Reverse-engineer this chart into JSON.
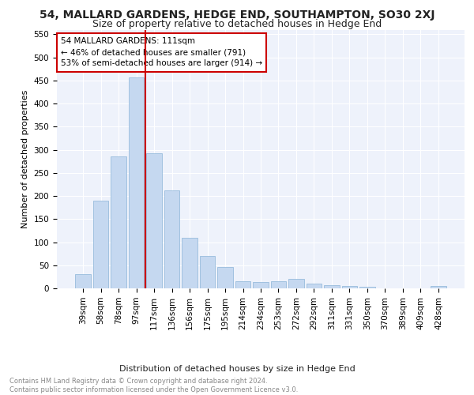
{
  "title": "54, MALLARD GARDENS, HEDGE END, SOUTHAMPTON, SO30 2XJ",
  "subtitle": "Size of property relative to detached houses in Hedge End",
  "xlabel": "Distribution of detached houses by size in Hedge End",
  "ylabel": "Number of detached properties",
  "categories": [
    "39sqm",
    "58sqm",
    "78sqm",
    "97sqm",
    "117sqm",
    "136sqm",
    "156sqm",
    "175sqm",
    "195sqm",
    "214sqm",
    "234sqm",
    "253sqm",
    "272sqm",
    "292sqm",
    "311sqm",
    "331sqm",
    "350sqm",
    "370sqm",
    "389sqm",
    "409sqm",
    "428sqm"
  ],
  "values": [
    30,
    190,
    285,
    457,
    293,
    212,
    110,
    70,
    46,
    15,
    13,
    15,
    20,
    10,
    7,
    5,
    4,
    0,
    0,
    0,
    5
  ],
  "bar_color": "#c5d8f0",
  "bar_edge_color": "#8ab4d8",
  "vline_x": 3.5,
  "vline_color": "#cc0000",
  "annotation_text": "54 MALLARD GARDENS: 111sqm\n← 46% of detached houses are smaller (791)\n53% of semi-detached houses are larger (914) →",
  "annotation_box_color": "#ffffff",
  "annotation_box_edge_color": "#cc0000",
  "ylim": [
    0,
    560
  ],
  "yticks": [
    0,
    50,
    100,
    150,
    200,
    250,
    300,
    350,
    400,
    450,
    500,
    550
  ],
  "footnote": "Contains HM Land Registry data © Crown copyright and database right 2024.\nContains public sector information licensed under the Open Government Licence v3.0.",
  "background_color": "#eef2fb",
  "grid_color": "#ffffff",
  "title_fontsize": 10,
  "subtitle_fontsize": 9,
  "label_fontsize": 8,
  "tick_fontsize": 7.5,
  "annotation_fontsize": 7.5,
  "footnote_fontsize": 6,
  "ylabel_fontsize": 8
}
